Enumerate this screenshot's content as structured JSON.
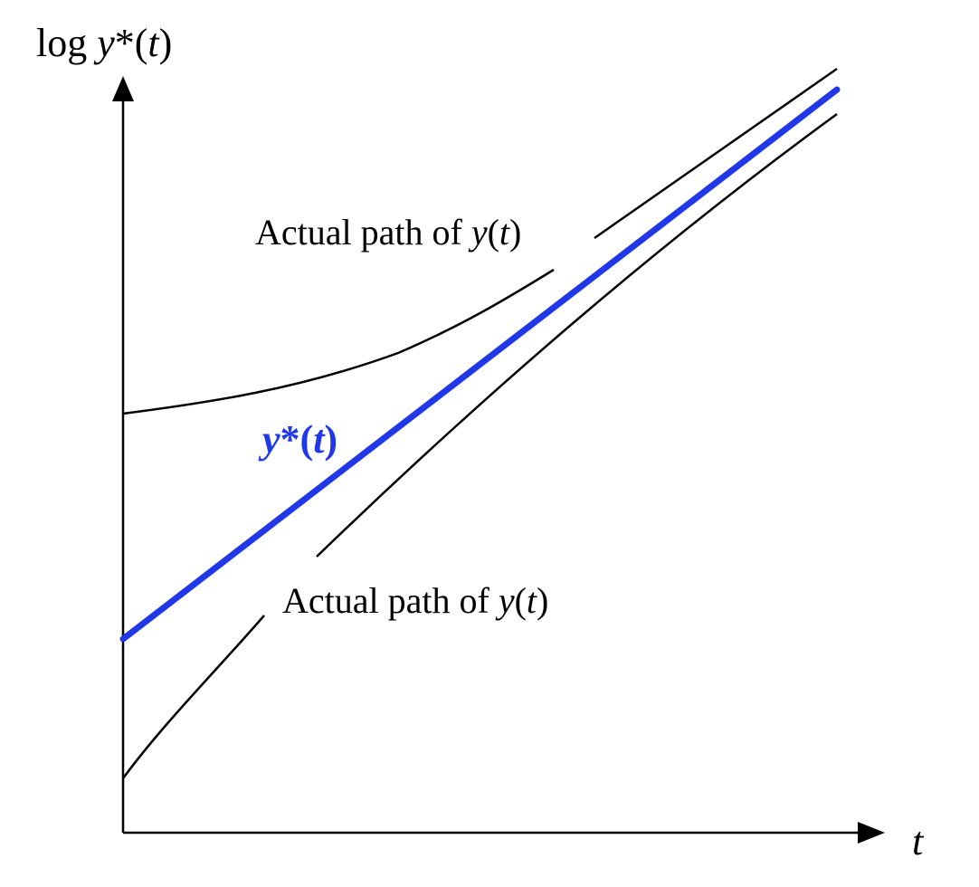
{
  "diagram": {
    "y_axis_label": {
      "prefix": "log ",
      "var": "y",
      "rest": "*(",
      "arg": "t",
      "close": ")"
    },
    "x_axis_label": "t",
    "trend": {
      "var": "y",
      "rest": "*(",
      "arg": "t",
      "close": ")",
      "color": "#2138e8"
    },
    "upper_path_label": {
      "text": "Actual path of ",
      "var": "y",
      "open": "(",
      "arg": "t",
      "close": ")"
    },
    "lower_path_label": {
      "text": "Actual path of ",
      "var": "y",
      "open": "(",
      "arg": "t",
      "close": ")"
    },
    "colors": {
      "axes": "#000000",
      "actual_paths": "#000000",
      "trend": "#2138e8"
    }
  }
}
